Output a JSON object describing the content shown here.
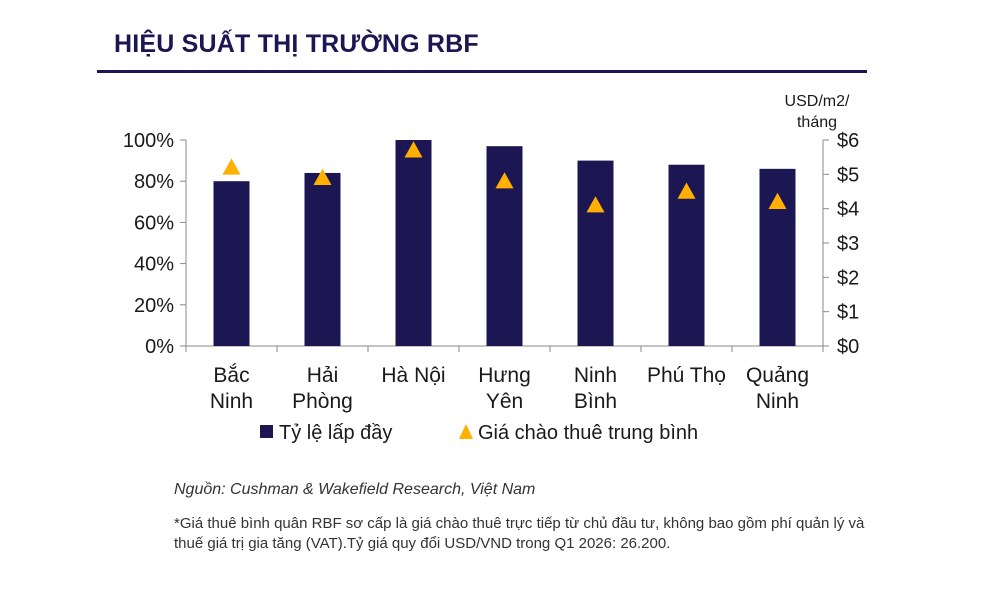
{
  "title": "HIỆU SUẤT THỊ TRƯỜNG RBF",
  "chart_data": {
    "type": "bar",
    "categories": [
      [
        "Bắc",
        "Ninh"
      ],
      [
        "Hải",
        "Phòng"
      ],
      [
        "Hà Nội"
      ],
      [
        "Hưng",
        "Yên"
      ],
      [
        "Ninh",
        "Bình"
      ],
      [
        "Phú Thọ"
      ],
      [
        "Quảng",
        "Ninh"
      ]
    ],
    "series": [
      {
        "name": "Tỷ lệ lấp đầy",
        "type": "bar",
        "axis": "left",
        "color": "#1c1752",
        "values": [
          80,
          84,
          100,
          97,
          90,
          88,
          86
        ]
      },
      {
        "name": "Giá chào thuê trung bình",
        "type": "scatter",
        "marker": "triangle",
        "axis": "right",
        "color": "#ffb000",
        "values": [
          5.2,
          4.9,
          5.7,
          4.8,
          4.1,
          4.5,
          4.2
        ]
      }
    ],
    "y_left": {
      "ticks": [
        "0%",
        "20%",
        "40%",
        "60%",
        "80%",
        "100%"
      ],
      "range": [
        0,
        100
      ]
    },
    "y_right": {
      "label": [
        "USD/m2/",
        "tháng"
      ],
      "ticks": [
        "$0",
        "$1",
        "$2",
        "$3",
        "$4",
        "$5",
        "$6"
      ],
      "range": [
        0,
        6
      ]
    },
    "grid": false,
    "legend": "bottom"
  },
  "source": "Nguồn: Cushman & Wakefield Research, Việt Nam",
  "note": "*Giá thuê bình quân RBF sơ cấp là giá chào thuê trực tiếp từ chủ đầu tư, không bao gồm phí quản lý và thuế giá trị gia tăng (VAT).Tỷ giá quy đổi USD/VND trong Q1 2026: 26.200."
}
